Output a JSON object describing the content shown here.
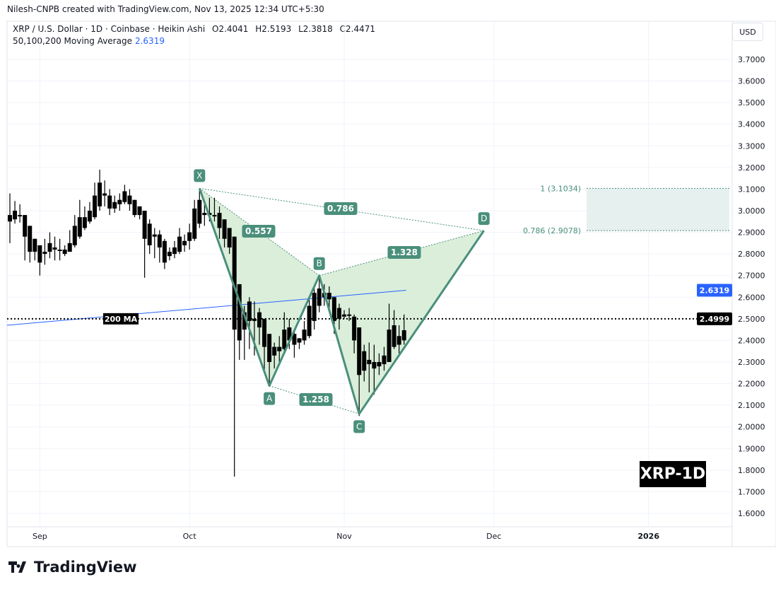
{
  "header": {
    "credit": "Nilesh-CNPB created with TradingView.com, Nov 13, 2025 12:34 UTC+5:30",
    "symbol": "XRP / U.S. Dollar · 1D · Coinbase · Heikin Ashi",
    "open": "O2.4041",
    "high": "H2.5193",
    "low": "L2.3818",
    "close": "C2.4471",
    "ma_label": "50,100,200 Moving Average",
    "ma_value": "2.6319"
  },
  "currency_button": "USD",
  "brand": "TradingView",
  "watermark": "XRP-1D",
  "colors": {
    "candle": "#000000",
    "pattern": "#4a8f7b",
    "pattern_fill": "#d6ecd6",
    "ma": "#2962ff",
    "zone": "#e6f0ee"
  },
  "chart_data": {
    "type": "candlestick",
    "ylim": [
      1.55,
      3.78
    ],
    "y_ticks": [
      "3.7000",
      "3.6000",
      "3.5000",
      "3.4000",
      "3.3000",
      "3.2000",
      "3.1000",
      "3.0000",
      "2.9000",
      "2.8000",
      "2.7000",
      "2.6000",
      "2.5000",
      "2.4000",
      "2.3000",
      "2.2000",
      "2.1000",
      "2.0000",
      "1.9000",
      "1.8000",
      "1.7000",
      "1.6000"
    ],
    "x_ticks": [
      {
        "label": "Sep",
        "index": 6
      },
      {
        "label": "Oct",
        "index": 36
      },
      {
        "label": "Nov",
        "index": 67
      },
      {
        "label": "Dec",
        "index": 97
      },
      {
        "label": "2026",
        "index": 128
      }
    ],
    "candles_ohlc": [
      [
        2.98,
        3.08,
        2.85,
        2.95
      ],
      [
        3.0,
        3.045,
        2.94,
        2.96
      ],
      [
        2.98,
        3.03,
        2.945,
        2.975
      ],
      [
        2.98,
        2.98,
        2.77,
        2.88
      ],
      [
        2.93,
        2.93,
        2.76,
        2.81
      ],
      [
        2.87,
        2.87,
        2.77,
        2.81
      ],
      [
        2.84,
        2.84,
        2.7,
        2.76
      ],
      [
        2.81,
        2.87,
        2.75,
        2.8
      ],
      [
        2.81,
        2.9,
        2.78,
        2.85
      ],
      [
        2.82,
        2.88,
        2.77,
        2.83
      ],
      [
        2.82,
        2.87,
        2.77,
        2.815
      ],
      [
        2.82,
        2.84,
        2.79,
        2.8
      ],
      [
        2.81,
        2.91,
        2.81,
        2.85
      ],
      [
        2.84,
        2.98,
        2.83,
        2.93
      ],
      [
        2.88,
        3.05,
        2.87,
        2.97
      ],
      [
        2.92,
        3.02,
        2.91,
        2.97
      ],
      [
        2.95,
        3.04,
        2.94,
        3.0
      ],
      [
        2.97,
        3.13,
        2.96,
        3.07
      ],
      [
        3.02,
        3.19,
        3.0,
        3.13
      ],
      [
        3.08,
        3.14,
        3.02,
        3.07
      ],
      [
        3.07,
        3.1,
        2.98,
        3.01
      ],
      [
        3.04,
        3.07,
        2.99,
        3.01
      ],
      [
        3.03,
        3.08,
        3.0,
        3.05
      ],
      [
        3.04,
        3.12,
        3.03,
        3.09
      ],
      [
        3.07,
        3.1,
        3.0,
        3.03
      ],
      [
        3.05,
        3.05,
        2.97,
        2.98
      ],
      [
        3.02,
        3.02,
        2.96,
        2.98
      ],
      [
        3.0,
        3.0,
        2.69,
        2.87
      ],
      [
        2.94,
        2.96,
        2.8,
        2.84
      ],
      [
        2.89,
        2.92,
        2.78,
        2.88
      ],
      [
        2.89,
        2.91,
        2.76,
        2.83
      ],
      [
        2.86,
        2.87,
        2.73,
        2.76
      ],
      [
        2.81,
        2.83,
        2.77,
        2.79
      ],
      [
        2.83,
        2.86,
        2.78,
        2.8
      ],
      [
        2.81,
        2.92,
        2.8,
        2.88
      ],
      [
        2.84,
        2.89,
        2.81,
        2.86
      ],
      [
        2.86,
        2.94,
        2.82,
        2.9
      ],
      [
        2.87,
        3.05,
        2.86,
        3.01
      ],
      [
        2.94,
        3.1,
        2.92,
        3.05
      ],
      [
        2.99,
        3.05,
        2.93,
        2.98
      ],
      [
        2.99,
        3.06,
        2.95,
        2.98
      ],
      [
        2.98,
        3.06,
        2.95,
        2.975
      ],
      [
        2.99,
        3.02,
        2.87,
        2.92
      ],
      [
        2.96,
        2.96,
        2.83,
        2.87
      ],
      [
        2.92,
        2.92,
        2.8,
        2.83
      ],
      [
        2.88,
        2.88,
        1.77,
        2.45
      ],
      [
        2.66,
        2.66,
        2.31,
        2.4
      ],
      [
        2.53,
        2.56,
        2.31,
        2.45
      ],
      [
        2.49,
        2.6,
        2.36,
        2.58
      ],
      [
        2.5,
        2.58,
        2.33,
        2.49
      ],
      [
        2.53,
        2.55,
        2.38,
        2.46
      ],
      [
        2.5,
        2.5,
        2.25,
        2.37
      ],
      [
        2.43,
        2.43,
        2.19,
        2.3
      ],
      [
        2.37,
        2.39,
        2.27,
        2.33
      ],
      [
        2.35,
        2.42,
        2.3,
        2.37
      ],
      [
        2.36,
        2.53,
        2.34,
        2.45
      ],
      [
        2.4,
        2.5,
        2.36,
        2.46
      ],
      [
        2.43,
        2.44,
        2.32,
        2.38
      ],
      [
        2.41,
        2.41,
        2.36,
        2.39
      ],
      [
        2.4,
        2.49,
        2.38,
        2.45
      ],
      [
        2.42,
        2.6,
        2.41,
        2.56
      ],
      [
        2.49,
        2.65,
        2.45,
        2.62
      ],
      [
        2.56,
        2.7,
        2.53,
        2.64
      ],
      [
        2.62,
        2.66,
        2.56,
        2.6
      ],
      [
        2.62,
        2.65,
        2.54,
        2.59
      ],
      [
        2.6,
        2.6,
        2.43,
        2.49
      ],
      [
        2.55,
        2.57,
        2.45,
        2.5
      ],
      [
        2.52,
        2.54,
        2.5,
        2.51
      ],
      [
        2.52,
        2.55,
        2.49,
        2.515
      ],
      [
        2.51,
        2.52,
        2.34,
        2.4
      ],
      [
        2.46,
        2.46,
        2.05,
        2.24
      ],
      [
        2.35,
        2.38,
        2.21,
        2.26
      ],
      [
        2.31,
        2.39,
        2.16,
        2.29
      ],
      [
        2.3,
        2.38,
        2.15,
        2.27
      ],
      [
        2.3,
        2.34,
        2.24,
        2.28
      ],
      [
        2.29,
        2.37,
        2.26,
        2.33
      ],
      [
        2.3,
        2.57,
        2.3,
        2.45
      ],
      [
        2.37,
        2.54,
        2.36,
        2.47
      ],
      [
        2.38,
        2.47,
        2.34,
        2.42
      ],
      [
        2.4,
        2.52,
        2.38,
        2.4471
      ]
    ],
    "moving_average": {
      "label": "200 MA",
      "start_value": 2.47,
      "end_value": 2.6319
    },
    "last_price": "2.4999",
    "ma_badge": "2.6319",
    "harmonic": {
      "points": [
        {
          "label": "X",
          "index": 38,
          "price": 3.1034
        },
        {
          "label": "A",
          "index": 52,
          "price": 2.19
        },
        {
          "label": "B",
          "index": 62,
          "price": 2.7
        },
        {
          "label": "C",
          "index": 70,
          "price": 2.06
        },
        {
          "label": "D",
          "index": 95,
          "price": 2.9078
        }
      ],
      "ratios": {
        "XB": "0.557",
        "AC": "1.258",
        "BD": "1.328",
        "XD": "0.786"
      }
    },
    "target_zone": {
      "upper_label": "1 (3.1034)",
      "upper": 3.1034,
      "lower_label": "0.786 (2.9078)",
      "lower": 2.9078
    }
  }
}
